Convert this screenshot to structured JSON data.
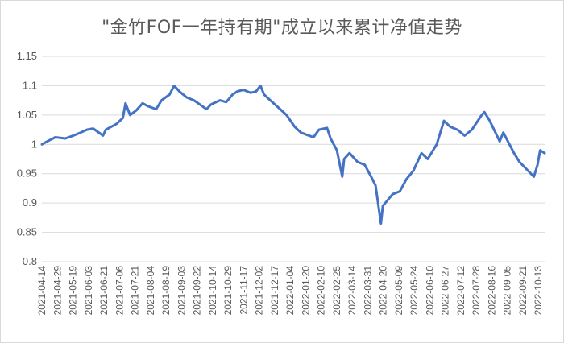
{
  "chart_data": {
    "type": "line",
    "title": "\"金竹FOF一年持有期\"成立以来累计净值走势",
    "xlabel": "",
    "ylabel": "",
    "ylim": [
      0.8,
      1.15
    ],
    "yticks": [
      "1.15",
      "1.1",
      "1.05",
      "1",
      "0.95",
      "0.9",
      "0.85",
      "0.8"
    ],
    "grid": "horizontal",
    "legend": "none",
    "line_color": "#4472C4",
    "x_tick_labels": [
      "2021-04-14",
      "2021-04-29",
      "2021-05-19",
      "2021-06-03",
      "2021-06-21",
      "2021-07-06",
      "2021-07-21",
      "2021-08-04",
      "2021-08-19",
      "2021-09-03",
      "2021-09-22",
      "2021-10-14",
      "2021-10-29",
      "2021-11-17",
      "2021-12-02",
      "2021-12-17",
      "2022-01-04",
      "2022-01-20",
      "2022-02-10",
      "2022-02-25",
      "2022-03-14",
      "2022-03-31",
      "2022-04-20",
      "2022-05-09",
      "2022-05-24",
      "2022-06-10",
      "2022-06-27",
      "2022-07-12",
      "2022-07-28",
      "2022-08-16",
      "2022-09-05",
      "2022-09-21",
      "2022-10-13"
    ],
    "series": [
      {
        "x": [
          "2021-04-14",
          "2021-04-20",
          "2021-04-29",
          "2021-05-10",
          "2021-05-19",
          "2021-05-27",
          "2021-06-03",
          "2021-06-10",
          "2021-06-21",
          "2021-06-24",
          "2021-07-06",
          "2021-07-13",
          "2021-07-16",
          "2021-07-21",
          "2021-07-28",
          "2021-08-04",
          "2021-08-10",
          "2021-08-19",
          "2021-08-25",
          "2021-09-03",
          "2021-09-08",
          "2021-09-14",
          "2021-09-22",
          "2021-09-30",
          "2021-10-14",
          "2021-10-19",
          "2021-10-29",
          "2021-11-05",
          "2021-11-12",
          "2021-11-17",
          "2021-11-24",
          "2021-12-02",
          "2021-12-08",
          "2021-12-13",
          "2021-12-17",
          "2021-12-24",
          "2022-01-04",
          "2022-01-11",
          "2022-01-20",
          "2022-01-27",
          "2022-02-10",
          "2022-02-16",
          "2022-02-25",
          "2022-03-01",
          "2022-03-08",
          "2022-03-14",
          "2022-03-16",
          "2022-03-22",
          "2022-03-31",
          "2022-04-08",
          "2022-04-15",
          "2022-04-20",
          "2022-04-26",
          "2022-04-28",
          "2022-05-09",
          "2022-05-17",
          "2022-05-24",
          "2022-06-01",
          "2022-06-10",
          "2022-06-17",
          "2022-06-27",
          "2022-07-05",
          "2022-07-12",
          "2022-07-20",
          "2022-07-28",
          "2022-08-05",
          "2022-08-16",
          "2022-08-19",
          "2022-08-25",
          "2022-09-05",
          "2022-09-09",
          "2022-09-21",
          "2022-09-27",
          "2022-10-13",
          "2022-10-17",
          "2022-10-20",
          "2022-10-25"
        ],
        "values": [
          1.0,
          1.005,
          1.012,
          1.01,
          1.015,
          1.02,
          1.025,
          1.027,
          1.015,
          1.025,
          1.035,
          1.045,
          1.07,
          1.05,
          1.058,
          1.07,
          1.065,
          1.06,
          1.075,
          1.085,
          1.1,
          1.09,
          1.08,
          1.075,
          1.06,
          1.068,
          1.075,
          1.072,
          1.085,
          1.09,
          1.093,
          1.088,
          1.09,
          1.1,
          1.085,
          1.075,
          1.06,
          1.05,
          1.03,
          1.02,
          1.012,
          1.025,
          1.028,
          1.01,
          0.99,
          0.945,
          0.975,
          0.985,
          0.97,
          0.965,
          0.945,
          0.93,
          0.865,
          0.895,
          0.915,
          0.92,
          0.94,
          0.955,
          0.985,
          0.975,
          1.0,
          1.04,
          1.03,
          1.025,
          1.015,
          1.025,
          1.05,
          1.055,
          1.04,
          1.005,
          1.02,
          0.985,
          0.97,
          0.945,
          0.965,
          0.99,
          0.985
        ]
      }
    ]
  }
}
